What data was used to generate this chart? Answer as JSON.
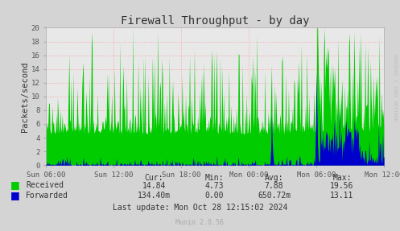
{
  "title": "Firewall Throughput - by day",
  "ylabel": "Packets/second",
  "background_color": "#d4d4d4",
  "plot_bg_color": "#e8e8e8",
  "grid_color": "#ff9999",
  "title_color": "#333333",
  "yticks": [
    0,
    2,
    4,
    6,
    8,
    10,
    12,
    14,
    16,
    18,
    20
  ],
  "ylim": [
    0,
    20
  ],
  "xtick_labels": [
    "Sun 06:00",
    "Sun 12:00",
    "Sun 18:00",
    "Mon 00:00",
    "Mon 06:00",
    "Mon 12:00"
  ],
  "received_color": "#00cc00",
  "forwarded_color": "#0000cc",
  "watermark": "RRDTOOL / TOBI OETIKER",
  "munin_text": "Munin 2.0.56",
  "legend_entries": [
    "Received",
    "Forwarded"
  ],
  "stats_header": [
    "Cur:",
    "Min:",
    "Avg:",
    "Max:"
  ],
  "stats_received": [
    "14.84",
    "4.73",
    "7.88",
    "19.56"
  ],
  "stats_forwarded": [
    "134.40m",
    "0.00",
    "650.72m",
    "13.11"
  ],
  "last_update": "Last update: Mon Oct 28 12:15:02 2024",
  "n_points": 500
}
